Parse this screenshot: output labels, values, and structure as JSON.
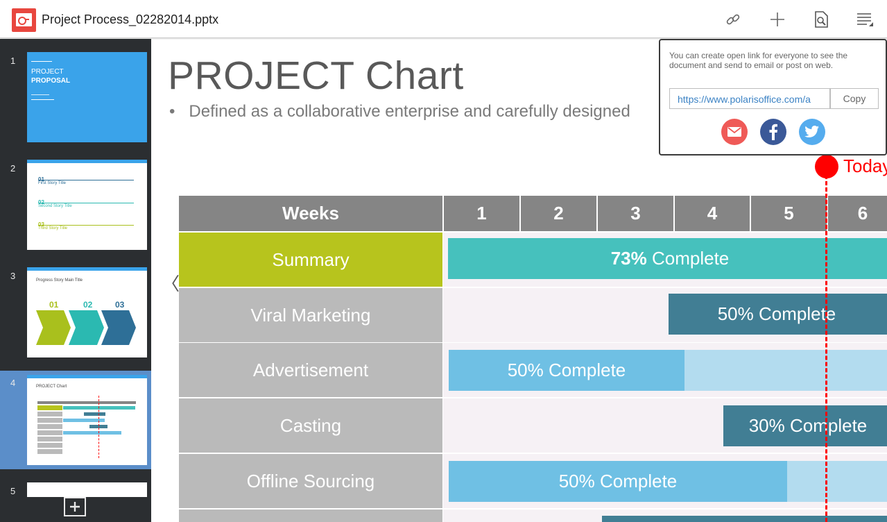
{
  "app": {
    "doc_title": "Project Process_02282014.pptx"
  },
  "toolbar": {
    "link_icon": "link-icon",
    "add_icon": "plus-icon",
    "find_icon": "document-search-icon",
    "menu_icon": "menu-icon"
  },
  "sidebar": {
    "slides": [
      {
        "number": "1",
        "title": "PROJECT",
        "subtitle": "PROPOSAL"
      },
      {
        "number": "2",
        "items": [
          "01",
          "First Story Title",
          "02",
          "Second Story Title",
          "03",
          "Third Story Title"
        ]
      },
      {
        "number": "3",
        "title": "Progress Story Main Title",
        "phases": [
          "01",
          "02",
          "03"
        ]
      },
      {
        "number": "4",
        "title": "PROJECT Chart"
      },
      {
        "number": "5"
      }
    ],
    "active_index": 3
  },
  "slide": {
    "title": "PROJECT Chart",
    "bullet": "Defined as a collaborative enterprise and carefully designed",
    "weeks_header": "Weeks",
    "weeks": [
      "1",
      "2",
      "3",
      "4",
      "5",
      "6"
    ],
    "today_label": "Today",
    "rows": [
      {
        "label": "Summary",
        "pct": "73%",
        "text": " Complete"
      },
      {
        "label": "Viral Marketing",
        "text": "50% Complete"
      },
      {
        "label": "Advertisement",
        "text": "50% Complete"
      },
      {
        "label": "Casting",
        "text": "30% Complete"
      },
      {
        "label": "Offline Sourcing",
        "text": "50% Complete"
      }
    ],
    "colors": {
      "header": "#858585",
      "summary": "#b7c41d",
      "label": "#bababa",
      "teal": "#46c1bd",
      "dark": "#417e94",
      "light": "#6fc0e4",
      "light_remaining": "#b3dcef",
      "today": "#ff0000"
    }
  },
  "share_popup": {
    "message": "You can create open link for everyone to see the document and send to email or post on web.",
    "link": "https://www.polarisoffice.com/a",
    "copy_label": "Copy",
    "share_targets": [
      "email-icon",
      "facebook-icon",
      "twitter-icon"
    ]
  }
}
